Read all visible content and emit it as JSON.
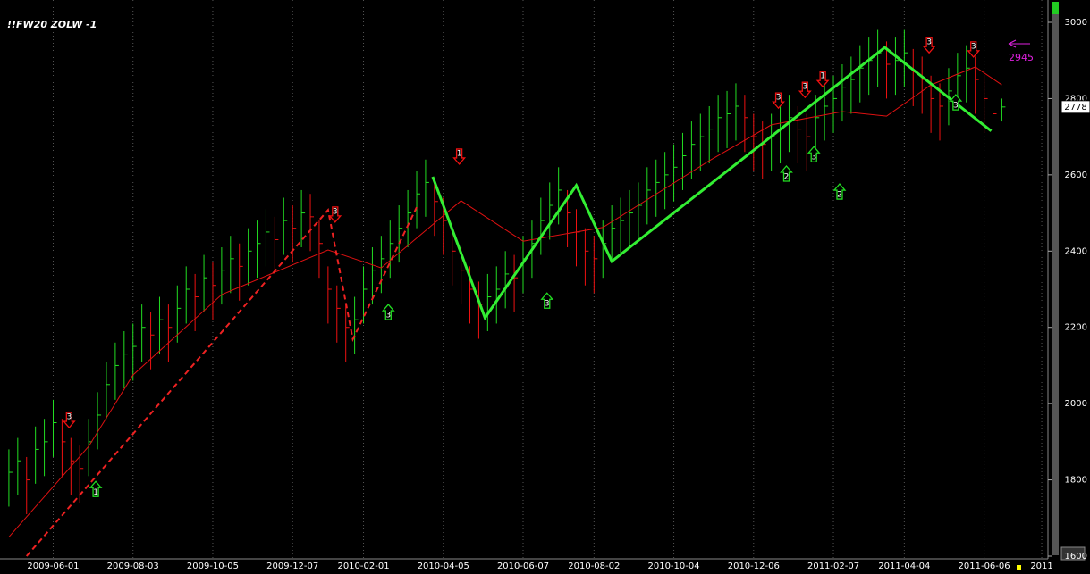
{
  "chart_data": {
    "type": "hlc",
    "title": "!!FW20 ZOLW -1",
    "ylim": [
      1600,
      3000
    ],
    "yticks": [
      1600,
      1800,
      2000,
      2200,
      2400,
      2600,
      2800,
      3000
    ],
    "xlim": [
      -1,
      117
    ],
    "xticks": [
      {
        "value": 5,
        "label": "2009-06-01"
      },
      {
        "value": 14,
        "label": "2009-08-03"
      },
      {
        "value": 23,
        "label": "2009-10-05"
      },
      {
        "value": 32,
        "label": "2009-12-07"
      },
      {
        "value": 40,
        "label": "2010-02-01"
      },
      {
        "value": 49,
        "label": "2010-04-05"
      },
      {
        "value": 58,
        "label": "2010-06-07"
      },
      {
        "value": 66,
        "label": "2010-08-02"
      },
      {
        "value": 75,
        "label": "2010-10-04"
      },
      {
        "value": 84,
        "label": "2010-12-06"
      },
      {
        "value": 93,
        "label": "2011-02-07"
      },
      {
        "value": 101,
        "label": "2011-04-04"
      },
      {
        "value": 110,
        "label": "2011-06-06"
      },
      {
        "value": 116.5,
        "label": "2011"
      }
    ],
    "grid": "x",
    "up_color": "#22dd22",
    "down_color": "#ee1111",
    "high": [
      1880,
      1910,
      1860,
      1940,
      1960,
      2010,
      1960,
      1910,
      1890,
      1960,
      2030,
      2110,
      2160,
      2190,
      2210,
      2260,
      2240,
      2280,
      2260,
      2310,
      2360,
      2340,
      2390,
      2370,
      2410,
      2440,
      2420,
      2460,
      2480,
      2510,
      2490,
      2540,
      2520,
      2560,
      2550,
      2480,
      2360,
      2310,
      2260,
      2280,
      2360,
      2410,
      2440,
      2480,
      2520,
      2560,
      2610,
      2640,
      2590,
      2540,
      2460,
      2410,
      2360,
      2320,
      2340,
      2360,
      2400,
      2390,
      2440,
      2480,
      2540,
      2580,
      2620,
      2560,
      2510,
      2460,
      2440,
      2480,
      2520,
      2540,
      2560,
      2580,
      2620,
      2640,
      2660,
      2680,
      2710,
      2740,
      2760,
      2780,
      2810,
      2820,
      2840,
      2810,
      2760,
      2740,
      2760,
      2780,
      2810,
      2780,
      2760,
      2810,
      2840,
      2860,
      2890,
      2910,
      2940,
      2960,
      2980,
      2950,
      2960,
      2980,
      2930,
      2910,
      2860,
      2840,
      2880,
      2920,
      2940,
      2910,
      2860,
      2820,
      2800
    ],
    "low": [
      1730,
      1760,
      1710,
      1790,
      1810,
      1860,
      1810,
      1760,
      1740,
      1810,
      1880,
      1960,
      2010,
      2040,
      2060,
      2110,
      2090,
      2130,
      2110,
      2160,
      2210,
      2190,
      2240,
      2220,
      2260,
      2290,
      2270,
      2310,
      2330,
      2360,
      2340,
      2390,
      2370,
      2410,
      2400,
      2330,
      2210,
      2160,
      2110,
      2130,
      2210,
      2260,
      2290,
      2330,
      2370,
      2410,
      2460,
      2490,
      2440,
      2390,
      2310,
      2260,
      2210,
      2170,
      2190,
      2210,
      2250,
      2240,
      2290,
      2330,
      2390,
      2430,
      2470,
      2410,
      2360,
      2310,
      2290,
      2330,
      2370,
      2390,
      2410,
      2430,
      2470,
      2490,
      2510,
      2530,
      2560,
      2590,
      2610,
      2630,
      2660,
      2670,
      2690,
      2660,
      2610,
      2590,
      2610,
      2630,
      2660,
      2630,
      2610,
      2660,
      2690,
      2710,
      2740,
      2760,
      2790,
      2810,
      2830,
      2800,
      2810,
      2830,
      2780,
      2760,
      2710,
      2690,
      2730,
      2770,
      2790,
      2760,
      2710,
      2670,
      2740
    ],
    "close": [
      1820,
      1850,
      1800,
      1880,
      1900,
      1950,
      1900,
      1850,
      1830,
      1900,
      1970,
      2050,
      2100,
      2130,
      2150,
      2200,
      2180,
      2220,
      2200,
      2250,
      2300,
      2280,
      2330,
      2310,
      2350,
      2380,
      2360,
      2400,
      2420,
      2450,
      2430,
      2480,
      2460,
      2500,
      2490,
      2420,
      2300,
      2250,
      2200,
      2220,
      2300,
      2350,
      2380,
      2420,
      2460,
      2500,
      2550,
      2580,
      2530,
      2480,
      2400,
      2350,
      2300,
      2260,
      2280,
      2300,
      2340,
      2330,
      2380,
      2420,
      2480,
      2520,
      2560,
      2500,
      2450,
      2400,
      2380,
      2420,
      2460,
      2480,
      2500,
      2520,
      2560,
      2580,
      2600,
      2620,
      2650,
      2680,
      2700,
      2720,
      2750,
      2760,
      2780,
      2750,
      2700,
      2680,
      2700,
      2720,
      2750,
      2720,
      2700,
      2750,
      2780,
      2800,
      2830,
      2850,
      2880,
      2900,
      2920,
      2890,
      2900,
      2920,
      2870,
      2850,
      2800,
      2780,
      2820,
      2860,
      2880,
      2850,
      2800,
      2760,
      2778
    ],
    "ma": {
      "color": "#dd1111",
      "x": [
        0,
        9,
        14,
        24,
        36,
        42,
        51,
        58,
        67,
        79,
        86,
        94,
        99,
        104,
        109,
        112
      ],
      "values": [
        1650,
        1888,
        2075,
        2286,
        2403,
        2356,
        2532,
        2426,
        2462,
        2637,
        2731,
        2766,
        2754,
        2836,
        2883,
        2836
      ]
    },
    "zigzag": {
      "color": "#33ee33",
      "x": [
        47.8,
        53.7,
        64,
        68,
        98.8,
        110.8
      ],
      "values": [
        2595,
        2225,
        2572,
        2373,
        2934,
        2715
      ]
    },
    "zigzag_dashed": {
      "color": "#ee2222",
      "x": [
        2,
        36,
        38.8,
        46
      ],
      "values": [
        1600,
        2508,
        2169,
        2515
      ]
    },
    "signals": [
      {
        "x": 6.8,
        "y": 1958,
        "label": "3",
        "dir": "down"
      },
      {
        "x": 9.8,
        "y": 1775,
        "label": "1",
        "dir": "up"
      },
      {
        "x": 36.8,
        "y": 2497,
        "label": "3",
        "dir": "down"
      },
      {
        "x": 42.8,
        "y": 2239,
        "label": "3",
        "dir": "up"
      },
      {
        "x": 50.8,
        "y": 2649,
        "label": "1",
        "dir": "down"
      },
      {
        "x": 60.7,
        "y": 2269,
        "label": "3",
        "dir": "up"
      },
      {
        "x": 86.8,
        "y": 2796,
        "label": "3",
        "dir": "down"
      },
      {
        "x": 87.7,
        "y": 2602,
        "label": "2",
        "dir": "up"
      },
      {
        "x": 89.8,
        "y": 2824,
        "label": "3",
        "dir": "down"
      },
      {
        "x": 91.8,
        "y": 2852,
        "label": "1",
        "dir": "down"
      },
      {
        "x": 90.8,
        "y": 2653,
        "label": "3",
        "dir": "up"
      },
      {
        "x": 93.7,
        "y": 2555,
        "label": "2",
        "dir": "up"
      },
      {
        "x": 103.8,
        "y": 2941,
        "label": "3",
        "dir": "down"
      },
      {
        "x": 108.8,
        "y": 2930,
        "label": "3",
        "dir": "down"
      },
      {
        "x": 106.8,
        "y": 2789,
        "label": "3",
        "dir": "up"
      }
    ],
    "annotation": "2945"
  }
}
